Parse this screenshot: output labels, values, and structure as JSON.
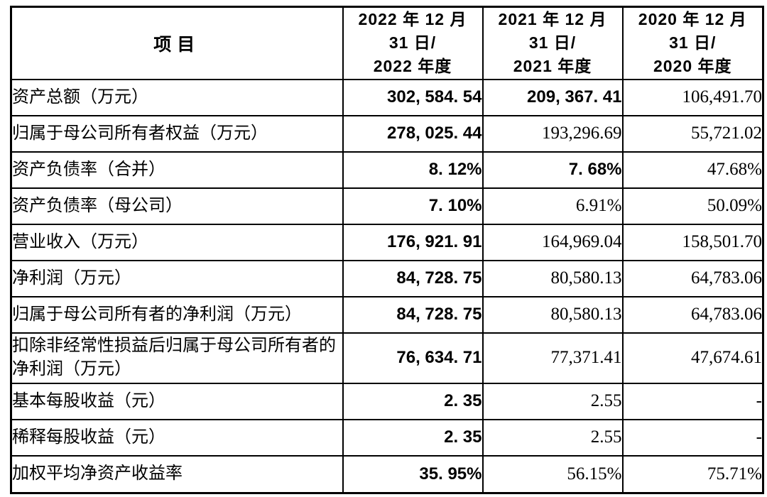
{
  "colors": {
    "background": "#ffffff",
    "border": "#000000",
    "text": "#000000"
  },
  "table": {
    "header": {
      "item_label": "项目",
      "periods": [
        {
          "lines": [
            "2022 年 12 月",
            "31 日/",
            "2022 年度"
          ]
        },
        {
          "lines": [
            "2021 年 12 月",
            "31 日/",
            "2021 年度"
          ]
        },
        {
          "lines": [
            "2020 年 12 月",
            "31 日/",
            "2020 年度"
          ]
        }
      ]
    },
    "rows": [
      {
        "label": "资产总额（万元）",
        "values": [
          "302, 584. 54",
          "209, 367. 41",
          "106,491.70"
        ]
      },
      {
        "label": "归属于母公司所有者权益（万元）",
        "values": [
          "278, 025. 44",
          "193,296.69",
          "55,721.02"
        ]
      },
      {
        "label": "资产负债率（合并）",
        "values": [
          "8. 12%",
          "7. 68%",
          "47.68%"
        ]
      },
      {
        "label": "资产负债率（母公司）",
        "values": [
          "7. 10%",
          "6.91%",
          "50.09%"
        ]
      },
      {
        "label": "营业收入（万元）",
        "values": [
          "176, 921. 91",
          "164,969.04",
          "158,501.70"
        ]
      },
      {
        "label": "净利润（万元）",
        "values": [
          "84, 728. 75",
          "80,580.13",
          "64,783.06"
        ]
      },
      {
        "label": "归属于母公司所有者的净利润（万元）",
        "values": [
          "84, 728. 75",
          "80,580.13",
          "64,783.06"
        ]
      },
      {
        "label": "扣除非经常性损益后归属于母公司所有者的净利润（万元）",
        "values": [
          "76, 634. 71",
          "77,371.41",
          "47,674.61"
        ]
      },
      {
        "label": "基本每股收益（元）",
        "values": [
          "2. 35",
          "2.55",
          "-"
        ]
      },
      {
        "label": "稀释每股收益（元）",
        "values": [
          "2. 35",
          "2.55",
          "-"
        ]
      },
      {
        "label": "加权平均净资产收益率",
        "values": [
          "35. 95%",
          "56.15%",
          "75.71%"
        ]
      }
    ]
  }
}
